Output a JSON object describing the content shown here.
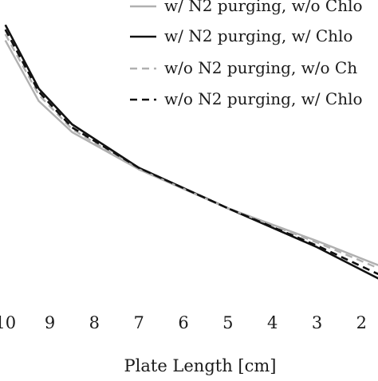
{
  "chart_data": {
    "type": "line",
    "xlabel": "Plate Length [cm]",
    "ylabel": "",
    "title": "",
    "x_reversed": true,
    "xlim": [
      1.5,
      10.2
    ],
    "ylim": [
      0,
      100
    ],
    "x_ticks": [
      "10",
      "9",
      "8",
      "7",
      "6",
      "5",
      "4",
      "3",
      "2"
    ],
    "x_tick_values": [
      10,
      9,
      8,
      7,
      6,
      5,
      4,
      3,
      2
    ],
    "grid": false,
    "legend": "top-right",
    "series": [
      {
        "name": "w/ N2 purging, w/o Chlo",
        "color": "#b0b0b0",
        "dash": "solid",
        "x": [
          10,
          9.25,
          8.5,
          7,
          5,
          3,
          1.5
        ],
        "y": [
          87,
          67.5,
          57.5,
          45.5,
          33,
          22.5,
          14
        ]
      },
      {
        "name": "w/ N2 purging, w/ Chlo",
        "color": "#111111",
        "dash": "solid",
        "x": [
          10,
          9.25,
          8.5,
          7,
          5,
          3,
          1.5
        ],
        "y": [
          92,
          71.5,
          60,
          46,
          33,
          20.5,
          9.5
        ]
      },
      {
        "name": "w/o N2 purging, w/o Ch",
        "color": "#b0b0b0",
        "dash": "dashed",
        "x": [
          10,
          9.25,
          8.5,
          7,
          5,
          3,
          1.5
        ],
        "y": [
          89,
          69.5,
          58.5,
          45.5,
          33,
          22,
          13
        ]
      },
      {
        "name": "w/o N2 purging, w/ Chlo",
        "color": "#111111",
        "dash": "dashed",
        "x": [
          10,
          9.25,
          8.5,
          7,
          5,
          3,
          1.5
        ],
        "y": [
          90.5,
          70.5,
          59,
          46,
          33,
          21,
          11
        ]
      }
    ]
  }
}
